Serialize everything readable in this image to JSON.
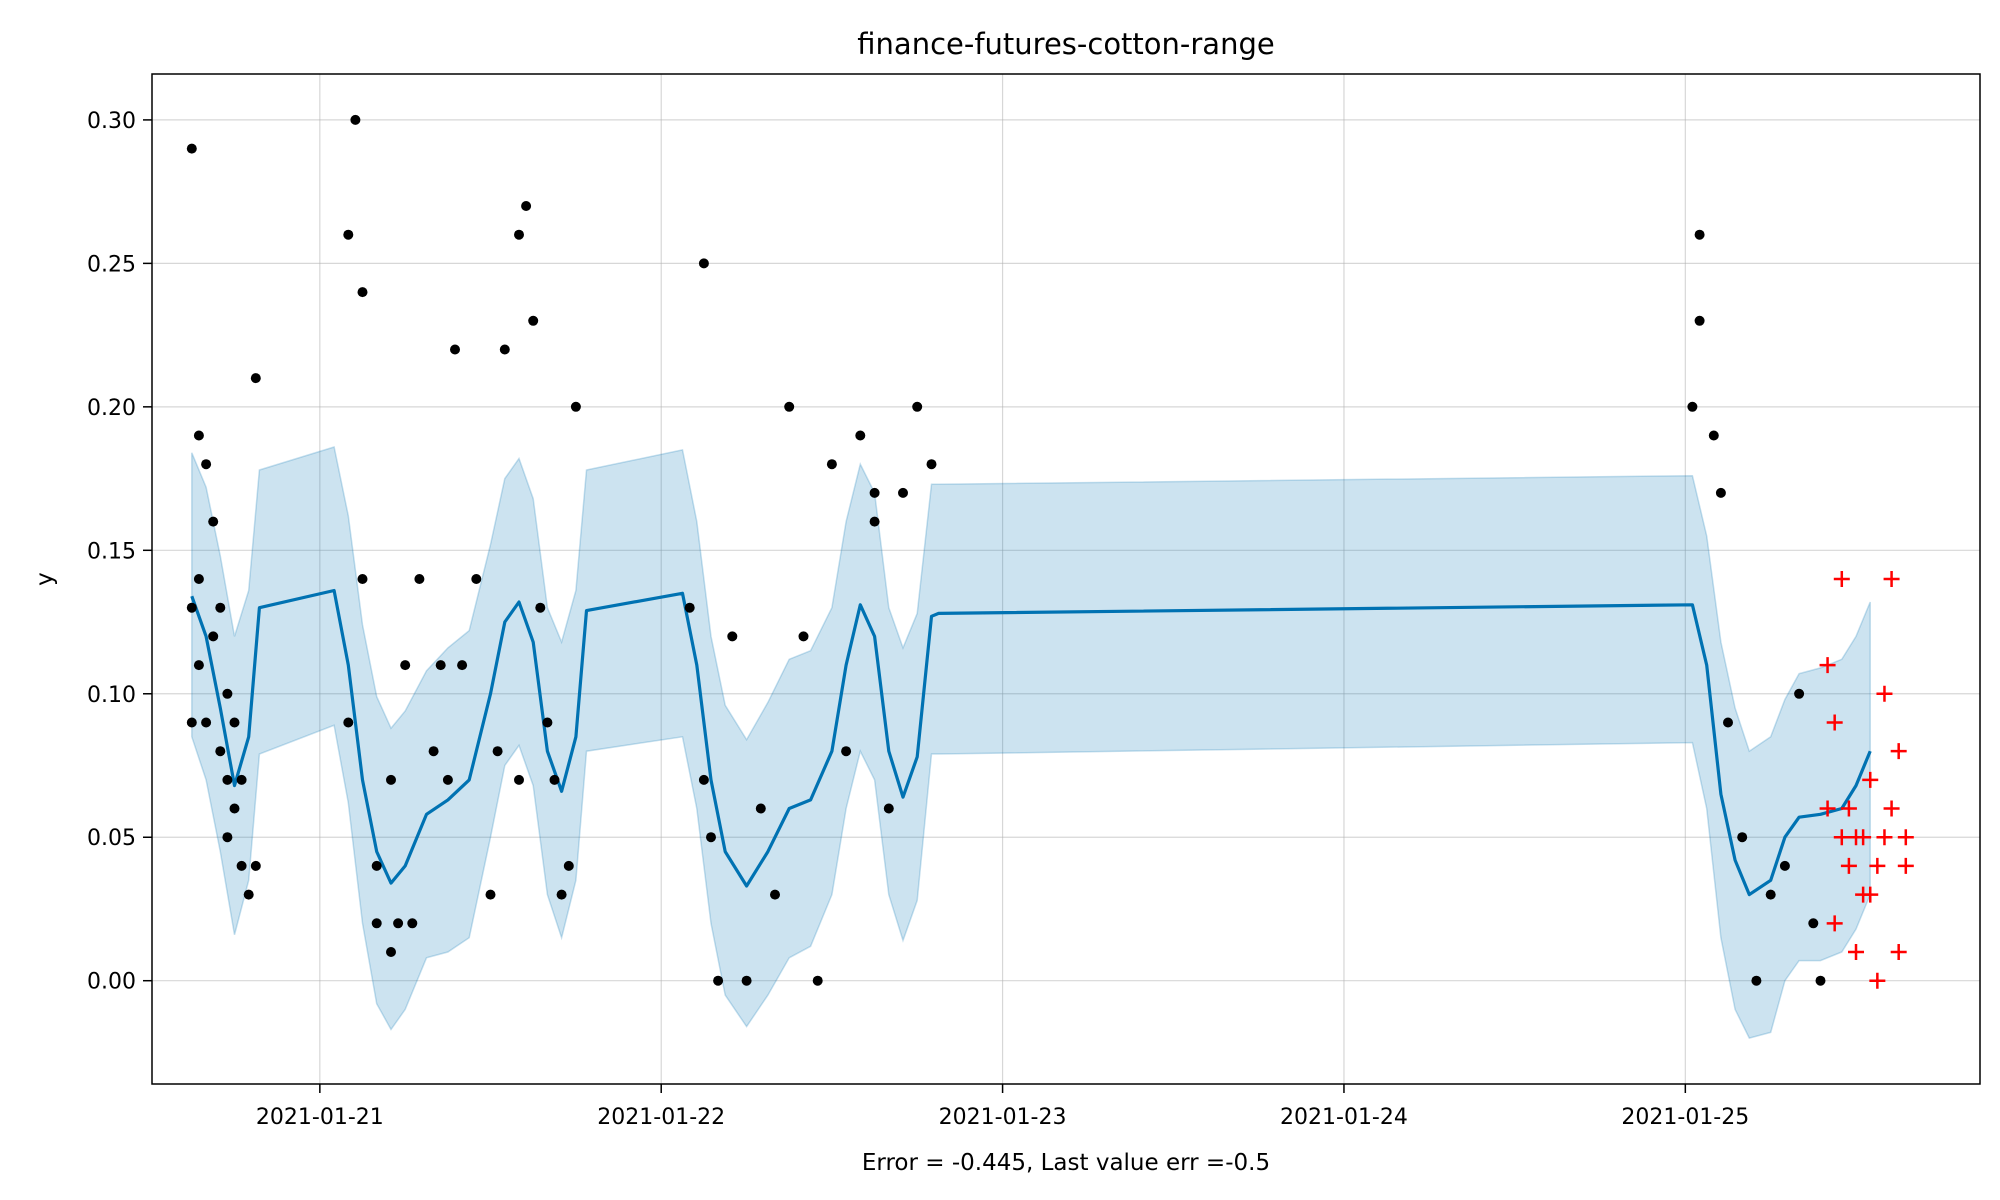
{
  "chart_data": {
    "type": "line",
    "title": "finance-futures-cotton-range",
    "xlabel": "Error = -0.445, Last value err =-0.5",
    "ylabel": "y",
    "x_unit": "days",
    "xlim": [
      "2021-01-20 12:12",
      "2021-01-25 20:43"
    ],
    "ylim": [
      -0.036,
      0.316
    ],
    "x_ticks": [
      "2021-01-21",
      "2021-01-22",
      "2021-01-23",
      "2021-01-24",
      "2021-01-25"
    ],
    "y_ticks": [
      "0.00",
      "0.05",
      "0.10",
      "0.15",
      "0.20",
      "0.25",
      "0.30"
    ],
    "y_tick_values": [
      0,
      0.05,
      0.1,
      0.15,
      0.2,
      0.25,
      0.3
    ],
    "grid": true,
    "colors": {
      "forecast": "#0072b2",
      "band": "#0072b2",
      "observed": "#000000",
      "future": "#ff0000"
    },
    "forecast": {
      "x": [
        "2021-01-20 15:00",
        "2021-01-20 16:00",
        "2021-01-20 17:00",
        "2021-01-20 18:00",
        "2021-01-20 19:00",
        "2021-01-20 19:45",
        "2021-01-21 01:00",
        "2021-01-21 02:00",
        "2021-01-21 03:00",
        "2021-01-21 04:00",
        "2021-01-21 05:00",
        "2021-01-21 06:00",
        "2021-01-21 07:30",
        "2021-01-21 09:00",
        "2021-01-21 10:30",
        "2021-01-21 12:00",
        "2021-01-21 13:00",
        "2021-01-21 14:00",
        "2021-01-21 15:00",
        "2021-01-21 16:00",
        "2021-01-21 17:00",
        "2021-01-21 18:00",
        "2021-01-21 18:45",
        "2021-01-22 01:30",
        "2021-01-22 02:30",
        "2021-01-22 03:30",
        "2021-01-22 04:30",
        "2021-01-22 06:00",
        "2021-01-22 07:30",
        "2021-01-22 09:00",
        "2021-01-22 10:30",
        "2021-01-22 12:00",
        "2021-01-22 13:00",
        "2021-01-22 14:00",
        "2021-01-22 15:00",
        "2021-01-22 16:00",
        "2021-01-22 17:00",
        "2021-01-22 18:00",
        "2021-01-22 19:00",
        "2021-01-22 19:30",
        "2021-01-25 00:30",
        "2021-01-25 01:30",
        "2021-01-25 02:30",
        "2021-01-25 03:30",
        "2021-01-25 04:30",
        "2021-01-25 06:00",
        "2021-01-25 07:00",
        "2021-01-25 08:00",
        "2021-01-25 09:30",
        "2021-01-25 11:00",
        "2021-01-25 12:00",
        "2021-01-25 13:00"
      ],
      "yhat": [
        0.134,
        0.12,
        0.095,
        0.068,
        0.085,
        0.13,
        0.136,
        0.11,
        0.07,
        0.045,
        0.034,
        0.04,
        0.058,
        0.063,
        0.07,
        0.1,
        0.125,
        0.132,
        0.118,
        0.08,
        0.066,
        0.085,
        0.129,
        0.135,
        0.11,
        0.07,
        0.045,
        0.033,
        0.045,
        0.06,
        0.063,
        0.08,
        0.11,
        0.131,
        0.12,
        0.08,
        0.064,
        0.078,
        0.127,
        0.128,
        0.131,
        0.11,
        0.065,
        0.042,
        0.03,
        0.035,
        0.05,
        0.057,
        0.058,
        0.06,
        0.068,
        0.08
      ],
      "upper": [
        0.184,
        0.172,
        0.148,
        0.12,
        0.136,
        0.178,
        0.186,
        0.162,
        0.124,
        0.099,
        0.088,
        0.094,
        0.108,
        0.116,
        0.122,
        0.152,
        0.175,
        0.182,
        0.168,
        0.13,
        0.118,
        0.136,
        0.178,
        0.185,
        0.16,
        0.12,
        0.096,
        0.084,
        0.097,
        0.112,
        0.115,
        0.13,
        0.16,
        0.18,
        0.17,
        0.13,
        0.116,
        0.128,
        0.173,
        0.173,
        0.176,
        0.155,
        0.118,
        0.095,
        0.08,
        0.085,
        0.098,
        0.107,
        0.109,
        0.112,
        0.12,
        0.132
      ],
      "lower": [
        0.085,
        0.07,
        0.045,
        0.016,
        0.035,
        0.079,
        0.089,
        0.062,
        0.02,
        -0.008,
        -0.017,
        -0.01,
        0.008,
        0.01,
        0.015,
        0.05,
        0.075,
        0.082,
        0.068,
        0.03,
        0.015,
        0.035,
        0.08,
        0.085,
        0.06,
        0.02,
        -0.005,
        -0.016,
        -0.005,
        0.008,
        0.012,
        0.03,
        0.06,
        0.08,
        0.07,
        0.03,
        0.014,
        0.028,
        0.079,
        0.079,
        0.083,
        0.06,
        0.015,
        -0.01,
        -0.02,
        -0.018,
        0,
        0.007,
        0.007,
        0.01,
        0.018,
        0.03
      ]
    },
    "observed": {
      "x": [
        "2021-01-20 15:00",
        "2021-01-20 15:00",
        "2021-01-20 15:00",
        "2021-01-20 15:30",
        "2021-01-20 15:30",
        "2021-01-20 15:30",
        "2021-01-20 16:00",
        "2021-01-20 16:00",
        "2021-01-20 16:30",
        "2021-01-20 16:30",
        "2021-01-20 17:00",
        "2021-01-20 17:00",
        "2021-01-20 17:30",
        "2021-01-20 17:30",
        "2021-01-20 17:30",
        "2021-01-20 18:00",
        "2021-01-20 18:00",
        "2021-01-20 18:30",
        "2021-01-20 18:30",
        "2021-01-20 19:00",
        "2021-01-20 19:30",
        "2021-01-20 19:30",
        "2021-01-21 02:00",
        "2021-01-21 02:00",
        "2021-01-21 02:30",
        "2021-01-21 03:00",
        "2021-01-21 03:00",
        "2021-01-21 04:00",
        "2021-01-21 04:00",
        "2021-01-21 05:00",
        "2021-01-21 05:00",
        "2021-01-21 05:30",
        "2021-01-21 06:00",
        "2021-01-21 06:30",
        "2021-01-21 07:00",
        "2021-01-21 08:00",
        "2021-01-21 08:30",
        "2021-01-21 09:00",
        "2021-01-21 09:30",
        "2021-01-21 10:00",
        "2021-01-21 11:00",
        "2021-01-21 12:00",
        "2021-01-21 12:30",
        "2021-01-21 13:00",
        "2021-01-21 14:00",
        "2021-01-21 14:00",
        "2021-01-21 14:30",
        "2021-01-21 15:00",
        "2021-01-21 15:30",
        "2021-01-21 16:00",
        "2021-01-21 16:30",
        "2021-01-21 17:00",
        "2021-01-21 17:30",
        "2021-01-21 18:00",
        "2021-01-22 02:00",
        "2021-01-22 03:00",
        "2021-01-22 03:00",
        "2021-01-22 03:30",
        "2021-01-22 04:00",
        "2021-01-22 05:00",
        "2021-01-22 06:00",
        "2021-01-22 07:00",
        "2021-01-22 08:00",
        "2021-01-22 09:00",
        "2021-01-22 10:00",
        "2021-01-22 11:00",
        "2021-01-22 12:00",
        "2021-01-22 13:00",
        "2021-01-22 14:00",
        "2021-01-22 15:00",
        "2021-01-22 15:00",
        "2021-01-22 16:00",
        "2021-01-22 17:00",
        "2021-01-22 18:00",
        "2021-01-22 19:00",
        "2021-01-25 00:30",
        "2021-01-25 01:00",
        "2021-01-25 01:00",
        "2021-01-25 02:00",
        "2021-01-25 02:30",
        "2021-01-25 03:00",
        "2021-01-25 04:00",
        "2021-01-25 05:00",
        "2021-01-25 06:00",
        "2021-01-25 07:00",
        "2021-01-25 08:00",
        "2021-01-25 09:00",
        "2021-01-25 09:30"
      ],
      "y": [
        0.29,
        0.09,
        0.13,
        0.19,
        0.11,
        0.14,
        0.18,
        0.09,
        0.16,
        0.12,
        0.13,
        0.08,
        0.1,
        0.07,
        0.05,
        0.09,
        0.06,
        0.04,
        0.07,
        0.03,
        0.21,
        0.04,
        0.26,
        0.09,
        0.3,
        0.24,
        0.14,
        0.04,
        0.02,
        0.07,
        0.01,
        0.02,
        0.11,
        0.02,
        0.14,
        0.08,
        0.11,
        0.07,
        0.22,
        0.11,
        0.14,
        0.03,
        0.08,
        0.22,
        0.26,
        0.07,
        0.27,
        0.23,
        0.13,
        0.09,
        0.07,
        0.03,
        0.04,
        0.2,
        0.13,
        0.25,
        0.07,
        0.05,
        0.0,
        0.12,
        0.0,
        0.06,
        0.03,
        0.2,
        0.12,
        0.0,
        0.18,
        0.08,
        0.19,
        0.16,
        0.17,
        0.06,
        0.17,
        0.2,
        0.18,
        0.2,
        0.26,
        0.23,
        0.19,
        0.17,
        0.09,
        0.05,
        0.0,
        0.03,
        0.04,
        0.1,
        0.02,
        0.0
      ]
    },
    "future": {
      "x": [
        "2021-01-25 10:00",
        "2021-01-25 10:00",
        "2021-01-25 10:30",
        "2021-01-25 10:30",
        "2021-01-25 11:00",
        "2021-01-25 11:00",
        "2021-01-25 11:30",
        "2021-01-25 11:30",
        "2021-01-25 12:00",
        "2021-01-25 12:00",
        "2021-01-25 12:30",
        "2021-01-25 12:30",
        "2021-01-25 13:00",
        "2021-01-25 13:00",
        "2021-01-25 13:30",
        "2021-01-25 13:30",
        "2021-01-25 14:00",
        "2021-01-25 14:00",
        "2021-01-25 14:30",
        "2021-01-25 14:30",
        "2021-01-25 15:00",
        "2021-01-25 15:00",
        "2021-01-25 15:30",
        "2021-01-25 15:30"
      ],
      "y": [
        0.11,
        0.06,
        0.09,
        0.02,
        0.14,
        0.05,
        0.04,
        0.06,
        0.05,
        0.01,
        0.03,
        0.05,
        0.03,
        0.07,
        0.0,
        0.04,
        0.1,
        0.05,
        0.14,
        0.06,
        0.08,
        0.01,
        0.04,
        0.05
      ]
    }
  }
}
